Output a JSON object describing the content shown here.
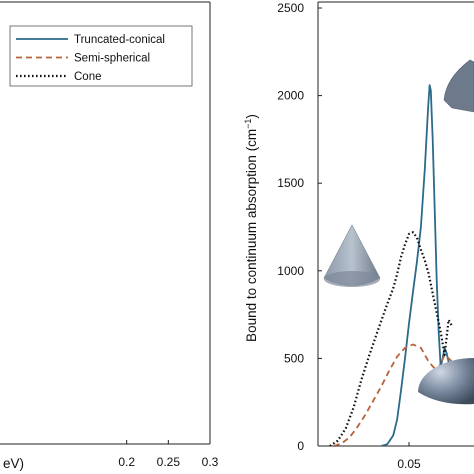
{
  "chart_data": [
    {
      "type": "line",
      "panel": "left (cropped)",
      "xlabel_visible_fragment": "eV)",
      "x_ticks": [
        "0.2",
        "0.25",
        "0.3"
      ],
      "xlim": [
        0.0,
        0.3
      ],
      "legend": {
        "placement": "top-left",
        "entries": [
          {
            "label": "Truncated-conical",
            "style": "solid",
            "color": "#2b6a8a"
          },
          {
            "label": "Semi-spherical",
            "style": "dashed",
            "color": "#b8623a"
          },
          {
            "label": "Cone",
            "style": "dotted",
            "color": "#111111"
          }
        ]
      }
    },
    {
      "type": "line",
      "panel": "right (cropped)",
      "ylabel": "Bound to continuum absorption (cm",
      "ylabel_unit_exp": "−1",
      "ylabel_close": ")",
      "ylim": [
        0,
        2500
      ],
      "y_ticks": [
        "0",
        "500",
        "1000",
        "1500",
        "2000",
        "2500"
      ],
      "x_ticks": [
        "0.05"
      ],
      "xlim": [
        0.027,
        0.073
      ],
      "series": [
        {
          "name": "Truncated-conical",
          "color": "#2b6a8a",
          "x": [
            0.043,
            0.0445,
            0.046,
            0.047,
            0.048,
            0.049,
            0.05,
            0.051,
            0.052,
            0.053,
            0.054,
            0.0548,
            0.0552,
            0.0555,
            0.056,
            0.0565,
            0.057,
            0.0575,
            0.058,
            0.0585,
            0.059,
            0.0595,
            0.06,
            0.061
          ],
          "y": [
            0,
            10,
            60,
            150,
            320,
            500,
            700,
            880,
            1050,
            1250,
            1580,
            1920,
            2060,
            2030,
            1750,
            1350,
            950,
            650,
            450,
            500,
            560,
            530,
            480,
            470
          ]
        },
        {
          "name": "Semi-spherical",
          "color": "#b8623a",
          "x": [
            0.031,
            0.033,
            0.035,
            0.037,
            0.039,
            0.041,
            0.043,
            0.045,
            0.047,
            0.049,
            0.051,
            0.053,
            0.055,
            0.057,
            0.058,
            0.059,
            0.06,
            0.061
          ],
          "y": [
            0,
            15,
            50,
            110,
            180,
            260,
            340,
            430,
            510,
            560,
            580,
            560,
            480,
            430,
            470,
            520,
            500,
            480
          ]
        },
        {
          "name": "Cone",
          "color": "#111111",
          "x": [
            0.03,
            0.032,
            0.034,
            0.036,
            0.038,
            0.04,
            0.042,
            0.044,
            0.046,
            0.047,
            0.048,
            0.049,
            0.05,
            0.051,
            0.052,
            0.053,
            0.054,
            0.055,
            0.056,
            0.057,
            0.058,
            0.059,
            0.06,
            0.061
          ],
          "y": [
            0,
            30,
            100,
            220,
            380,
            520,
            650,
            780,
            900,
            980,
            1080,
            1150,
            1210,
            1220,
            1190,
            1120,
            1060,
            980,
            870,
            760,
            650,
            520,
            720,
            680
          ]
        }
      ]
    }
  ]
}
